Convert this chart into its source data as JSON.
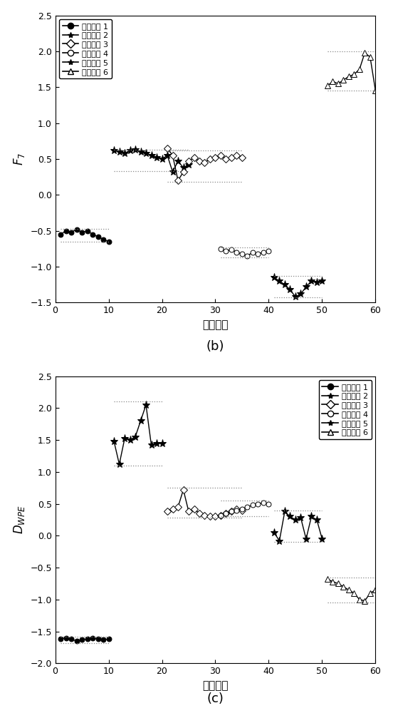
{
  "fig_width": 5.52,
  "fig_height": 10.0,
  "dpi": 100,
  "background_color": "#ffffff",
  "panel_b": {
    "ylabel": "$F_7$",
    "xlabel": "样本序号",
    "label_b": "(b)",
    "xlim": [
      0,
      60
    ],
    "ylim": [
      -1.5,
      2.5
    ],
    "yticks": [
      -1.5,
      -1.0,
      -0.5,
      0.0,
      0.5,
      1.0,
      1.5,
      2.0,
      2.5
    ],
    "xticks": [
      0,
      10,
      20,
      30,
      40,
      50,
      60
    ],
    "legend_loc": "upper left",
    "series": {
      "state1": {
        "x": [
          1,
          2,
          3,
          4,
          5,
          6,
          7,
          8,
          9,
          10
        ],
        "y": [
          -0.55,
          -0.5,
          -0.52,
          -0.48,
          -0.52,
          -0.5,
          -0.55,
          -0.58,
          -0.62,
          -0.65
        ],
        "marker": "o",
        "ms": 5,
        "color": "black",
        "mfc": "black",
        "xmean_range": [
          1,
          10
        ],
        "ymean_hi": -0.47,
        "ymean_lo": -0.65
      },
      "state2": {
        "x": [
          11,
          12,
          13,
          14,
          15,
          16,
          17,
          18,
          19,
          20,
          21,
          22,
          23,
          24,
          25
        ],
        "y": [
          0.62,
          0.6,
          0.58,
          0.62,
          0.63,
          0.6,
          0.58,
          0.55,
          0.52,
          0.5,
          0.55,
          0.32,
          0.47,
          0.38,
          0.42
        ],
        "marker": "*",
        "ms": 8,
        "color": "black",
        "mfc": "black",
        "xmean_range": [
          11,
          25
        ],
        "ymean_hi": 0.63,
        "ymean_lo": 0.33
      },
      "state3": {
        "x": [
          21,
          22,
          23,
          24,
          25,
          26,
          27,
          28,
          29,
          30,
          31,
          32,
          33,
          34,
          35
        ],
        "y": [
          0.65,
          0.55,
          0.2,
          0.32,
          0.47,
          0.52,
          0.47,
          0.45,
          0.5,
          0.52,
          0.55,
          0.5,
          0.52,
          0.55,
          0.52
        ],
        "marker": "D",
        "ms": 5,
        "color": "black",
        "mfc": "white",
        "xmean_range": [
          21,
          35
        ],
        "ymean_hi": 0.62,
        "ymean_lo": 0.18
      },
      "state4": {
        "x": [
          31,
          32,
          33,
          34,
          35,
          36,
          37,
          38,
          39,
          40
        ],
        "y": [
          -0.75,
          -0.78,
          -0.76,
          -0.8,
          -0.82,
          -0.85,
          -0.8,
          -0.82,
          -0.8,
          -0.78
        ],
        "marker": "o",
        "ms": 5,
        "color": "black",
        "mfc": "white",
        "xmean_range": [
          31,
          40
        ],
        "ymean_hi": -0.73,
        "ymean_lo": -0.87
      },
      "state5": {
        "x": [
          41,
          42,
          43,
          44,
          45,
          46,
          47,
          48,
          49,
          50
        ],
        "y": [
          -1.15,
          -1.2,
          -1.25,
          -1.32,
          -1.42,
          -1.38,
          -1.28,
          -1.2,
          -1.22,
          -1.2
        ],
        "marker": "*",
        "ms": 8,
        "color": "black",
        "mfc": "black",
        "xmean_range": [
          41,
          50
        ],
        "ymean_hi": -1.13,
        "ymean_lo": -1.43
      },
      "state6": {
        "x": [
          51,
          52,
          53,
          54,
          55,
          56,
          57,
          58,
          59,
          60
        ],
        "y": [
          1.52,
          1.58,
          1.55,
          1.6,
          1.65,
          1.68,
          1.75,
          1.98,
          1.92,
          1.45
        ],
        "marker": "^",
        "ms": 6,
        "color": "black",
        "mfc": "white",
        "xmean_range": [
          51,
          60
        ],
        "ymean_hi": 2.0,
        "ymean_lo": 1.45
      }
    }
  },
  "panel_c": {
    "ylabel": "$D_{WPE}$",
    "xlabel": "样本序号",
    "label_c": "(c)",
    "xlim": [
      0,
      60
    ],
    "ylim": [
      -2.0,
      2.5
    ],
    "yticks": [
      -2.0,
      -1.5,
      -1.0,
      -0.5,
      0.0,
      0.5,
      1.0,
      1.5,
      2.0,
      2.5
    ],
    "xticks": [
      0,
      10,
      20,
      30,
      40,
      50,
      60
    ],
    "legend_loc": "upper right",
    "series": {
      "state1": {
        "x": [
          1,
          2,
          3,
          4,
          5,
          6,
          7,
          8,
          9,
          10
        ],
        "y": [
          -1.62,
          -1.6,
          -1.62,
          -1.65,
          -1.63,
          -1.62,
          -1.6,
          -1.62,
          -1.63,
          -1.62
        ],
        "marker": "o",
        "ms": 5,
        "color": "black",
        "mfc": "black",
        "xmean_range": [
          1,
          10
        ],
        "ymean_hi": -1.58,
        "ymean_lo": -1.68
      },
      "state2": {
        "x": [
          11,
          12,
          13,
          14,
          15,
          16,
          17,
          18,
          19,
          20
        ],
        "y": [
          1.48,
          1.12,
          1.52,
          1.5,
          1.55,
          1.8,
          2.05,
          1.42,
          1.45,
          1.45
        ],
        "marker": "*",
        "ms": 8,
        "color": "black",
        "mfc": "black",
        "xmean_range": [
          11,
          20
        ],
        "ymean_hi": 2.1,
        "ymean_lo": 1.1
      },
      "state3": {
        "x": [
          21,
          22,
          23,
          24,
          25,
          26,
          27,
          28,
          29,
          30,
          31,
          32,
          33,
          34,
          35
        ],
        "y": [
          0.38,
          0.42,
          0.45,
          0.72,
          0.38,
          0.42,
          0.35,
          0.32,
          0.3,
          0.3,
          0.32,
          0.35,
          0.38,
          0.42,
          0.4
        ],
        "marker": "D",
        "ms": 5,
        "color": "black",
        "mfc": "white",
        "xmean_range": [
          21,
          35
        ],
        "ymean_hi": 0.75,
        "ymean_lo": 0.28
      },
      "state4": {
        "x": [
          31,
          32,
          33,
          34,
          35,
          36,
          37,
          38,
          39,
          40
        ],
        "y": [
          0.32,
          0.35,
          0.38,
          0.4,
          0.42,
          0.45,
          0.48,
          0.5,
          0.52,
          0.5
        ],
        "marker": "o",
        "ms": 5,
        "color": "black",
        "mfc": "white",
        "xmean_range": [
          31,
          40
        ],
        "ymean_hi": 0.55,
        "ymean_lo": 0.3
      },
      "state5": {
        "x": [
          41,
          42,
          43,
          44,
          45,
          46,
          47,
          48,
          49,
          50
        ],
        "y": [
          0.05,
          -0.08,
          0.38,
          0.3,
          0.25,
          0.28,
          -0.05,
          0.3,
          0.25,
          -0.05
        ],
        "marker": "*",
        "ms": 8,
        "color": "black",
        "mfc": "black",
        "xmean_range": [
          41,
          50
        ],
        "ymean_hi": 0.4,
        "ymean_lo": -0.1
      },
      "state6": {
        "x": [
          51,
          52,
          53,
          54,
          55,
          56,
          57,
          58,
          59,
          60
        ],
        "y": [
          -0.68,
          -0.72,
          -0.75,
          -0.8,
          -0.85,
          -0.9,
          -1.0,
          -1.02,
          -0.9,
          -0.85
        ],
        "marker": "^",
        "ms": 6,
        "color": "black",
        "mfc": "white",
        "xmean_range": [
          51,
          60
        ],
        "ymean_hi": -0.65,
        "ymean_lo": -1.05
      }
    }
  },
  "legend_entries": [
    {
      "label": "装配状态 1",
      "marker": "o",
      "mfc": "black"
    },
    {
      "label": "装配状态 2",
      "marker": "*",
      "mfc": "black"
    },
    {
      "label": "装配状态 3",
      "marker": "D",
      "mfc": "white"
    },
    {
      "label": "装配状态 4",
      "marker": "o",
      "mfc": "white"
    },
    {
      "label": "装配状态 5",
      "marker": "*",
      "mfc": "black"
    },
    {
      "label": "装配状态 6",
      "marker": "^",
      "mfc": "white"
    }
  ]
}
